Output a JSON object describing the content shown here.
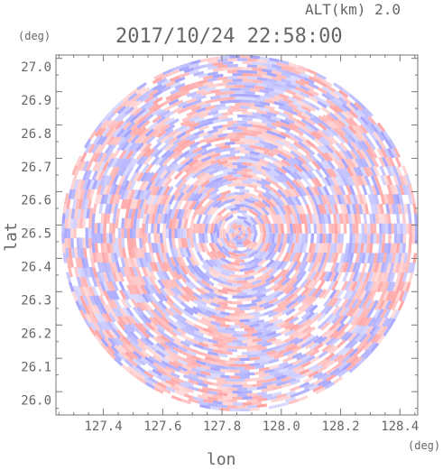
{
  "header": {
    "altitude": "ALT(km) 2.0",
    "datetime": "2017/10/24 22:58:00"
  },
  "chart_data": {
    "type": "heatmap",
    "title": "2017/10/24 22:58:00",
    "subtitle": "ALT(km) 2.0",
    "xlabel": "lon",
    "ylabel": "lat",
    "x_unit": "(deg)",
    "y_unit": "(deg)",
    "xlim": [
      127.24,
      128.46
    ],
    "ylim": [
      25.955,
      27.035
    ],
    "x_ticks": [
      127.4,
      127.6,
      127.8,
      128.0,
      128.2,
      128.4
    ],
    "x_tick_labels": [
      "127.4",
      "127.6",
      "127.8",
      "128.0",
      "128.2",
      "128.4"
    ],
    "y_ticks": [
      26.0,
      26.1,
      26.2,
      26.3,
      26.4,
      26.5,
      26.6,
      26.7,
      26.8,
      26.9,
      27.0
    ],
    "y_tick_labels": [
      "26.0",
      "26.1",
      "26.2",
      "26.3",
      "26.4",
      "26.5",
      "26.6",
      "26.7",
      "26.8",
      "26.9",
      "27.0"
    ],
    "radar_center": [
      127.86,
      26.5
    ],
    "radar_range_lat": 0.535,
    "colormap": {
      "positive": "#ff9b9b",
      "negative": "#9b9bff",
      "zero": "#ffffff"
    },
    "grid": false
  }
}
